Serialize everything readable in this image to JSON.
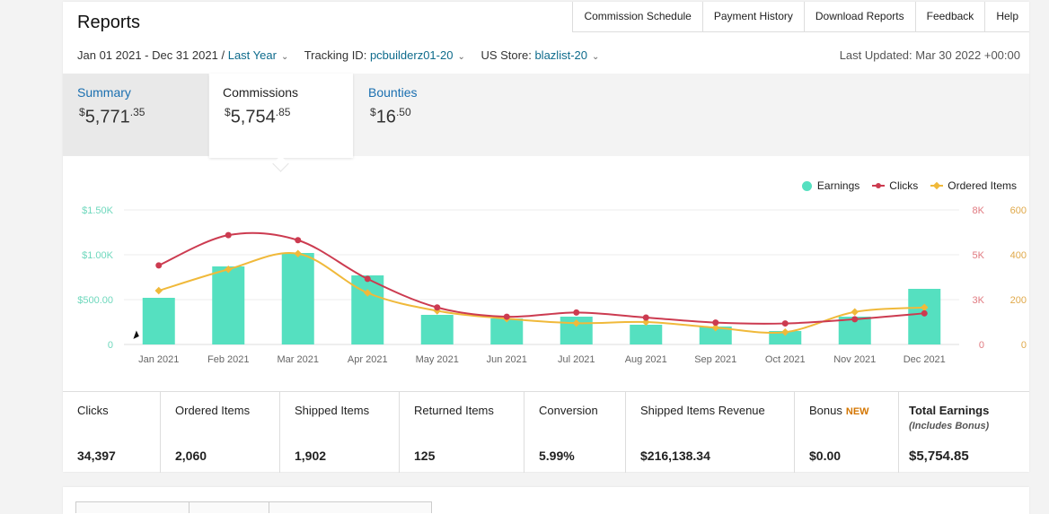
{
  "header": {
    "title": "Reports",
    "nav": [
      "Commission Schedule",
      "Payment History",
      "Download Reports",
      "Feedback",
      "Help"
    ]
  },
  "filters": {
    "date_range": "Jan 01 2021 - Dec 31 2021",
    "separator": "/",
    "period": "Last Year",
    "tracking_label": "Tracking ID:",
    "tracking_value": "pcbuilderz01-20",
    "store_label": "US Store:",
    "store_value": "blazlist-20",
    "last_updated": "Last Updated: Mar 30 2022 +00:00"
  },
  "summary_tabs": {
    "summary": {
      "label": "Summary",
      "currency": "$",
      "whole": "5,771",
      "cents": ".35"
    },
    "commissions": {
      "label": "Commissions",
      "currency": "$",
      "whole": "5,754",
      "cents": ".85"
    },
    "bounties": {
      "label": "Bounties",
      "currency": "$",
      "whole": "16",
      "cents": ".50"
    }
  },
  "legend": {
    "earnings": "Earnings",
    "clicks": "Clicks",
    "ordered": "Ordered Items"
  },
  "chart_data": {
    "type": "bar",
    "categories": [
      "Jan 2021",
      "Feb 2021",
      "Mar 2021",
      "Apr 2021",
      "May 2021",
      "Jun 2021",
      "Jul 2021",
      "Aug 2021",
      "Sep 2021",
      "Oct 2021",
      "Nov 2021",
      "Dec 2021"
    ],
    "series": [
      {
        "name": "Earnings",
        "type": "bar",
        "axis": "left",
        "color": "#55e0c0",
        "values": [
          520,
          870,
          1020,
          770,
          330,
          290,
          310,
          220,
          200,
          150,
          310,
          620
        ]
      },
      {
        "name": "Clicks",
        "type": "line",
        "axis": "right-outer",
        "color": "#cc3b50",
        "values": [
          4700,
          6500,
          6200,
          3900,
          2200,
          1650,
          1900,
          1600,
          1300,
          1250,
          1500,
          1850
        ]
      },
      {
        "name": "Ordered Items",
        "type": "line",
        "axis": "right-inner",
        "color": "#f0b93a",
        "values": [
          240,
          335,
          405,
          230,
          150,
          115,
          95,
          100,
          75,
          55,
          145,
          165
        ]
      }
    ],
    "y_left": {
      "ticks": [
        "0",
        "$500.00",
        "$1.00K",
        "$1.50K"
      ],
      "range": [
        0,
        1500
      ]
    },
    "y_right_inner": {
      "ticks": [
        "0",
        "200",
        "400",
        "600"
      ],
      "range": [
        0,
        600
      ]
    },
    "y_right_outer": {
      "ticks": [
        "0",
        "3K",
        "5K",
        "8K"
      ],
      "range": [
        0,
        8000
      ]
    },
    "grid": true,
    "legend_position": "top-right"
  },
  "stats": [
    {
      "label": "Clicks",
      "value": "34,397"
    },
    {
      "label": "Ordered Items",
      "value": "2,060"
    },
    {
      "label": "Shipped Items",
      "value": "1,902"
    },
    {
      "label": "Returned Items",
      "value": "125"
    },
    {
      "label": "Conversion",
      "value": "5.99%"
    },
    {
      "label": "Shipped Items Revenue",
      "value": "$216,138.34"
    },
    {
      "label": "Bonus",
      "badge": "NEW",
      "value": "$0.00"
    },
    {
      "label": "Total Earnings",
      "sub": "(Includes Bonus)",
      "value": "$5,754.85"
    }
  ]
}
